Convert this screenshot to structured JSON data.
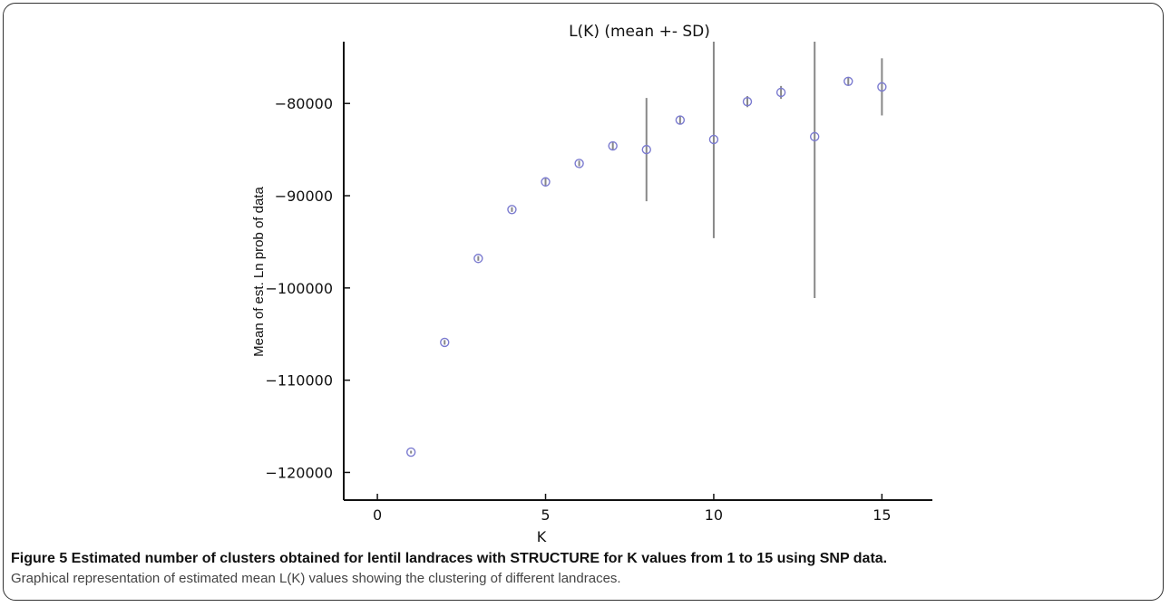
{
  "chart_data": {
    "type": "scatter",
    "title": "L(K) (mean +- SD)",
    "xlabel": "K",
    "ylabel": "Mean of est. Ln prob of data",
    "xlim": [
      -1,
      16.5
    ],
    "ylim": [
      -123000,
      -73300
    ],
    "xticks": [
      0,
      5,
      10,
      15
    ],
    "yticks": [
      -80000,
      -90000,
      -100000,
      -110000,
      -120000
    ],
    "xtick_labels": [
      "0",
      "5",
      "10",
      "15"
    ],
    "ytick_labels": [
      "−80000",
      "−90000",
      "−100000",
      "−110000",
      "−120000"
    ],
    "grid": false,
    "marker_color": "#7b7bd0",
    "errorbar_color": "#888888",
    "points": [
      {
        "k": 1,
        "mean": -117800,
        "sd": 150
      },
      {
        "k": 2,
        "mean": -105900,
        "sd": 250
      },
      {
        "k": 3,
        "mean": -96800,
        "sd": 250
      },
      {
        "k": 4,
        "mean": -91500,
        "sd": 250
      },
      {
        "k": 5,
        "mean": -88500,
        "sd": 500
      },
      {
        "k": 6,
        "mean": -86500,
        "sd": 300
      },
      {
        "k": 7,
        "mean": -84600,
        "sd": 400
      },
      {
        "k": 8,
        "mean": -85000,
        "sd": 5600
      },
      {
        "k": 9,
        "mean": -81800,
        "sd": 400
      },
      {
        "k": 10,
        "mean": -83900,
        "sd": 10700
      },
      {
        "k": 11,
        "mean": -79800,
        "sd": 600
      },
      {
        "k": 12,
        "mean": -78800,
        "sd": 700
      },
      {
        "k": 13,
        "mean": -83600,
        "sd": 17500
      },
      {
        "k": 14,
        "mean": -77600,
        "sd": 400
      },
      {
        "k": 15,
        "mean": -78200,
        "sd": 3100
      }
    ]
  },
  "caption": {
    "title": "Figure 5 Estimated number of clusters obtained for lentil landraces with STRUCTURE for K values from 1 to 15 using SNP data.",
    "text": "Graphical representation of estimated mean L(K) values showing the clustering of different landraces."
  }
}
